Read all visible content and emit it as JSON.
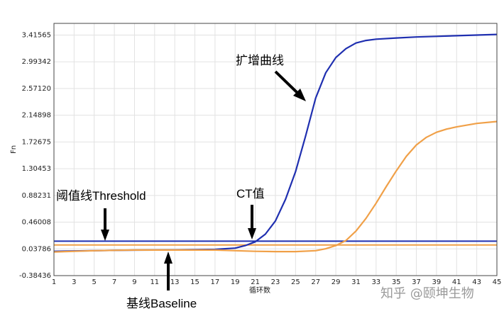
{
  "chart_data": {
    "type": "line",
    "xlabel": "循环数",
    "ylabel": "Fn",
    "xlim": [
      1,
      45
    ],
    "ylim": [
      -0.38436,
      3.6
    ],
    "x_ticks": [
      "1",
      "3",
      "5",
      "7",
      "9",
      "11",
      "13",
      "15",
      "17",
      "19",
      "21",
      "23",
      "25",
      "27",
      "29",
      "31",
      "33",
      "35",
      "37",
      "39",
      "41",
      "43",
      "45"
    ],
    "y_ticks": [
      "3.41565",
      "2.99342",
      "2.57120",
      "2.14898",
      "1.72675",
      "1.30453",
      "0.88231",
      "0.46008",
      "0.03786",
      "-0.38436"
    ],
    "y_tick_values": [
      3.41565,
      2.99342,
      2.5712,
      2.14898,
      1.72675,
      1.30453,
      0.88231,
      0.46008,
      0.03786,
      -0.38436
    ],
    "grid": true,
    "series": [
      {
        "color": "#1f2fb0",
        "x": [
          1,
          3,
          5,
          7,
          9,
          11,
          13,
          15,
          17,
          19,
          20,
          21,
          22,
          23,
          24,
          25,
          26,
          27,
          28,
          29,
          30,
          31,
          32,
          33,
          35,
          37,
          39,
          41,
          43,
          45
        ],
        "y": [
          0.0,
          0.005,
          0.01,
          0.015,
          0.018,
          0.02,
          0.022,
          0.025,
          0.03,
          0.05,
          0.09,
          0.15,
          0.27,
          0.48,
          0.82,
          1.26,
          1.82,
          2.42,
          2.82,
          3.06,
          3.2,
          3.29,
          3.33,
          3.35,
          3.37,
          3.385,
          3.395,
          3.405,
          3.415,
          3.425
        ]
      },
      {
        "color": "#f0a048",
        "x": [
          1,
          3,
          5,
          7,
          9,
          11,
          13,
          15,
          17,
          19,
          21,
          23,
          25,
          27,
          28,
          29,
          30,
          31,
          32,
          33,
          34,
          35,
          36,
          37,
          38,
          39,
          40,
          41,
          43,
          45
        ],
        "y": [
          -0.01,
          0.0,
          0.01,
          0.015,
          0.02,
          0.02,
          0.02,
          0.02,
          0.02,
          0.01,
          0.0,
          -0.005,
          -0.005,
          0.01,
          0.04,
          0.09,
          0.17,
          0.32,
          0.52,
          0.76,
          1.02,
          1.27,
          1.5,
          1.68,
          1.8,
          1.88,
          1.93,
          1.965,
          2.02,
          2.05
        ]
      }
    ],
    "thresholds": [
      {
        "y": 0.16,
        "color": "#1f2fb0"
      },
      {
        "y": 0.1,
        "color": "#f0a048"
      }
    ],
    "annotations": {
      "amplification": "扩增曲线",
      "threshold": "阈值线Threshold",
      "ct": "CT值",
      "baseline": "基线Baseline"
    },
    "watermark": "知乎 @颐坤生物"
  }
}
